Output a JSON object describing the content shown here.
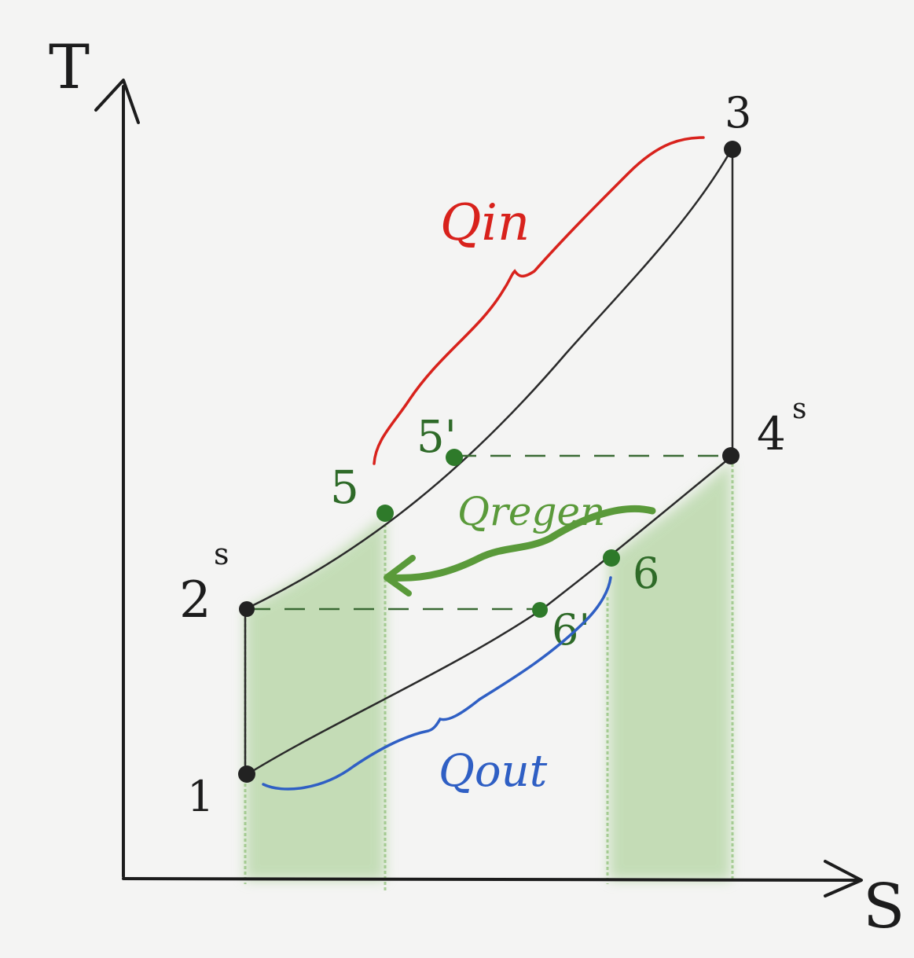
{
  "axes": {
    "y_label": "T",
    "x_label": "S"
  },
  "points": {
    "p1": "1",
    "p2s": "2",
    "p2s_sup": "s",
    "p3": "3",
    "p4s": "4",
    "p4s_sup": "s",
    "p5": "5",
    "p5prime": "5'",
    "p6": "6",
    "p6prime": "6'"
  },
  "heat": {
    "q_in": "Qin",
    "q_regen": "Qregen",
    "q_out": "Qout"
  },
  "colors": {
    "ink": "#222222",
    "q_in": "#d8221c",
    "q_regen": "#5a9a3a",
    "q_out": "#2f5fc4",
    "shade": "#8fc07a",
    "point_green": "#2e7a2a"
  }
}
